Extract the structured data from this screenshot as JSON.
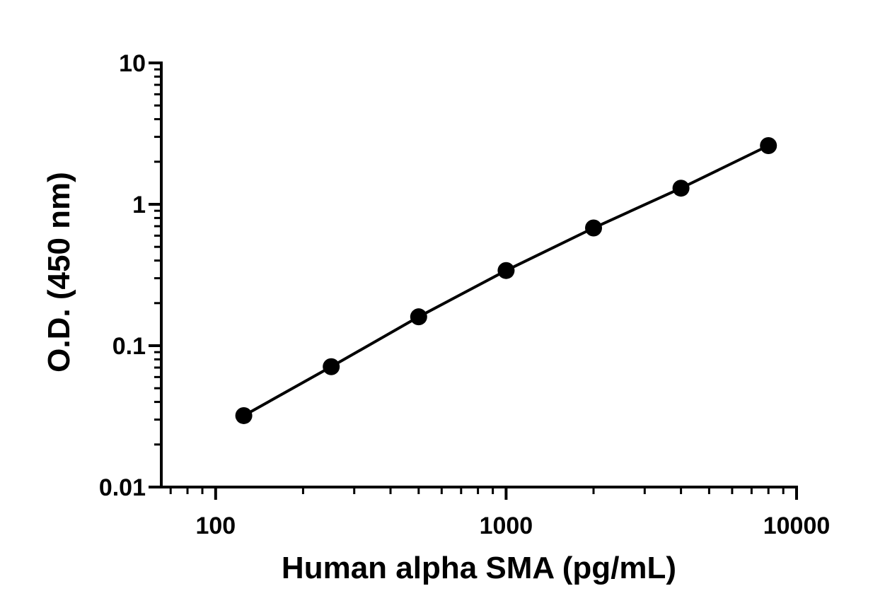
{
  "chart_data": {
    "type": "line",
    "x_label": "Human alpha SMA (pg/mL)",
    "y_label": "O.D. (450 nm)",
    "x": [
      125,
      250,
      500,
      1000,
      2000,
      4000,
      8000
    ],
    "series": [
      {
        "color": "#000000",
        "values": [
          0.032,
          0.071,
          0.16,
          0.34,
          0.68,
          1.3,
          2.6
        ]
      }
    ],
    "xlim": [
      65,
      10000
    ],
    "ylim": [
      0.01,
      10
    ],
    "xticks": [
      100,
      1000,
      10000
    ],
    "yticks": [
      0.01,
      0.1,
      1,
      10
    ],
    "xscale": "log",
    "yscale": "log",
    "grid": false
  }
}
